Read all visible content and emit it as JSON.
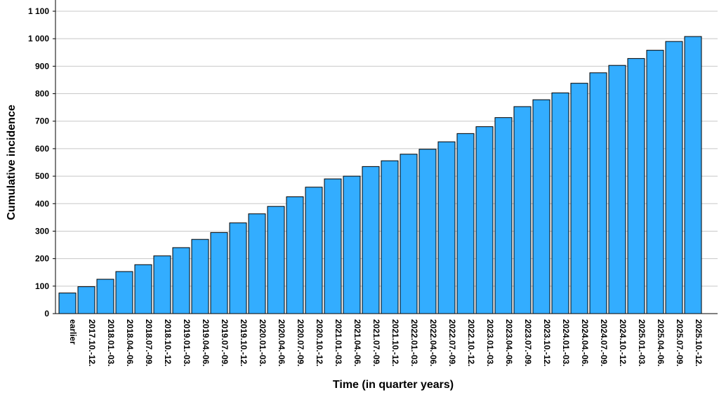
{
  "chart_data": {
    "type": "bar",
    "xlabel": "Time (in quarter years)",
    "ylabel": "Cumulative incidence",
    "ylim": [
      0,
      1100
    ],
    "ytick_values": [
      0,
      100,
      200,
      300,
      400,
      500,
      600,
      700,
      800,
      900,
      1000,
      1100
    ],
    "ytick_labels": [
      "0",
      "100",
      "200",
      "300",
      "400",
      "500",
      "600",
      "700",
      "800",
      "900",
      "1 000",
      "1 100"
    ],
    "grid": true,
    "bar_color": "#33adff",
    "categories": [
      "earlier",
      "2017.10.-12.",
      "2018.01.-03.",
      "2018.04.-06.",
      "2018.07.-09.",
      "2018.10.-12.",
      "2019.01.-03.",
      "2019.04.-06.",
      "2019.07.-09.",
      "2019.10.-12.",
      "2020.01.-03.",
      "2020.04.-06.",
      "2020.07.-09.",
      "2020.10.-12.",
      "2021.01.-03.",
      "2021.04.-06.",
      "2021.07.-09.",
      "2021.10.-12.",
      "2022.01.-03.",
      "2022.04.-06.",
      "2022.07.-09.",
      "2022.10.-12.",
      "2023.01.-03.",
      "2023.04.-06.",
      "2023.07.-09.",
      "2023.10.-12.",
      "2024.01.-03.",
      "2024.04.-06.",
      "2024.07.-09.",
      "2024.10.-12.",
      "2025.01.-03.",
      "2025.04.-06.",
      "2025.07.-09.",
      "2025.10.-12."
    ],
    "values": [
      75,
      98,
      125,
      153,
      178,
      210,
      240,
      270,
      295,
      330,
      363,
      390,
      425,
      460,
      490,
      500,
      535,
      556,
      580,
      598,
      625,
      655,
      680,
      713,
      753,
      778,
      803,
      838,
      876,
      903,
      928,
      958,
      990,
      1008
    ]
  }
}
